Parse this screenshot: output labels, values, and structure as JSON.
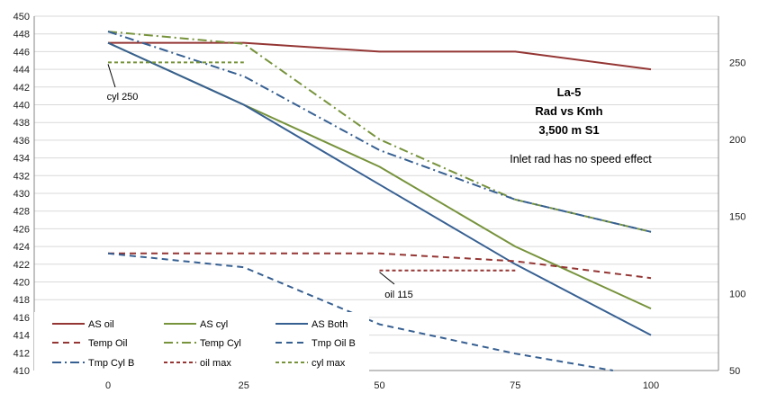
{
  "chart_data": {
    "type": "line",
    "title_lines": [
      "La-5",
      "Rad vs Kmh",
      "3,500 m S1"
    ],
    "note": "Inlet rad has no speed effect",
    "x_ticks": [
      0,
      25,
      50,
      75,
      100
    ],
    "y_left": {
      "range": [
        410,
        450
      ],
      "ticks": [
        410,
        412,
        414,
        416,
        418,
        420,
        422,
        424,
        426,
        428,
        430,
        432,
        434,
        436,
        438,
        440,
        442,
        444,
        446,
        448,
        450
      ]
    },
    "y_right": {
      "range": [
        50,
        280
      ],
      "ticks": [
        50,
        100,
        150,
        200,
        250
      ]
    },
    "grid": true,
    "legend_position": "bottom-left",
    "series": [
      {
        "name": "AS oil",
        "axis": "left",
        "color": "#943634",
        "dash": "solid",
        "x": [
          0,
          25,
          50,
          75,
          100
        ],
        "y": [
          447,
          447,
          446,
          446,
          444
        ]
      },
      {
        "name": "AS cyl",
        "axis": "left",
        "color": "#77933c",
        "dash": "solid",
        "x": [
          0,
          25,
          50,
          75,
          100
        ],
        "y": [
          447,
          440,
          433,
          424,
          417
        ]
      },
      {
        "name": "AS Both",
        "axis": "left",
        "color": "#376092",
        "dash": "solid",
        "x": [
          0,
          25,
          50,
          75,
          100
        ],
        "y": [
          447,
          440,
          431,
          422,
          414
        ]
      },
      {
        "name": "Temp Oil",
        "axis": "right",
        "color": "#943634",
        "dash": "dashed",
        "x": [
          0,
          25,
          50,
          75,
          100
        ],
        "y": [
          126,
          126,
          126,
          121,
          110
        ]
      },
      {
        "name": "Temp Cyl",
        "axis": "right",
        "color": "#77933c",
        "dash": "dashdot",
        "x": [
          0,
          25,
          50,
          75,
          100
        ],
        "y": [
          270,
          262,
          200,
          161,
          140
        ]
      },
      {
        "name": "Tmp Oil B",
        "axis": "right",
        "color": "#376092",
        "dash": "dashed",
        "x": [
          0,
          25,
          50,
          75,
          93
        ],
        "y": [
          126,
          117,
          80,
          61,
          50
        ]
      },
      {
        "name": "Tmp Cyl B",
        "axis": "right",
        "color": "#376092",
        "dash": "dashdot",
        "x": [
          0,
          25,
          50,
          75,
          100
        ],
        "y": [
          270,
          241,
          193,
          161,
          140
        ]
      },
      {
        "name": "oil max",
        "axis": "right",
        "color": "#943634",
        "dash": "dotted",
        "x": [
          50,
          75
        ],
        "y": [
          115,
          115
        ]
      },
      {
        "name": "cyl max",
        "axis": "right",
        "color": "#77933c",
        "dash": "dotted",
        "x": [
          0,
          25
        ],
        "y": [
          250,
          250
        ]
      }
    ],
    "annotations": [
      {
        "text": "cyl 250",
        "x": 0,
        "y": 250,
        "axis": "right"
      },
      {
        "text": "oil 115",
        "x": 50,
        "y": 115,
        "axis": "right"
      }
    ]
  }
}
